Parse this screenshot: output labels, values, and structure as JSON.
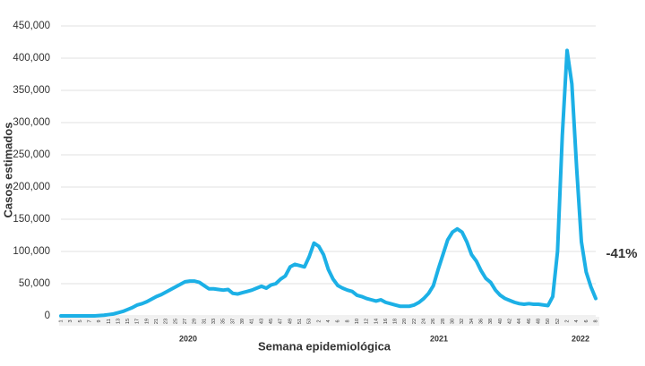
{
  "chart_data": {
    "type": "line",
    "y_label": "Casos estimados",
    "x_label": "Semana epidemiológica",
    "years": [
      "2020",
      "2021",
      "2022"
    ],
    "annotation": "-41%",
    "color": "#1cb0e6",
    "grid": true,
    "ylim": [
      0,
      450000
    ],
    "yticks": [
      0,
      {
        "value": 50000,
        "label": "50,000"
      },
      {
        "value": 100000,
        "label": "100,000"
      },
      {
        "value": 150000,
        "label": "150,000"
      },
      {
        "value": 200000,
        "label": "200,000"
      },
      {
        "value": 250000,
        "label": "250,000"
      },
      {
        "value": 300000,
        "label": "300,000"
      },
      {
        "value": 350000,
        "label": "350,000"
      },
      {
        "value": 400000,
        "label": "400,000"
      },
      {
        "value": 450000,
        "label": "450,000"
      }
    ],
    "categories": [
      "1",
      null,
      "3",
      null,
      "5",
      null,
      "7",
      null,
      "9",
      null,
      "11",
      null,
      "13",
      null,
      "15",
      null,
      "17",
      null,
      "19",
      null,
      "21",
      null,
      "23",
      null,
      "25",
      null,
      "27",
      null,
      "29",
      null,
      "31",
      null,
      "33",
      null,
      "35",
      null,
      "37",
      null,
      "39",
      null,
      "41",
      null,
      "43",
      null,
      "45",
      null,
      "47",
      null,
      "49",
      null,
      "51",
      null,
      "53",
      null,
      "2",
      null,
      "4",
      null,
      "6",
      null,
      "8",
      null,
      "10",
      null,
      "12",
      null,
      "14",
      null,
      "16",
      null,
      "18",
      null,
      "20",
      null,
      "22",
      null,
      "24",
      null,
      "26",
      null,
      "28",
      null,
      "30",
      null,
      "32",
      null,
      "34",
      null,
      "36",
      null,
      "38",
      null,
      "40",
      null,
      "42",
      null,
      "44",
      null,
      "46",
      null,
      "48",
      null,
      "50",
      null,
      "52",
      null,
      "2",
      null,
      "4",
      null,
      "6",
      null,
      "8"
    ],
    "values": [
      0,
      0,
      0,
      0,
      0,
      0,
      0,
      0,
      500,
      1000,
      2000,
      3000,
      5000,
      7000,
      10000,
      13000,
      17000,
      19000,
      22000,
      26000,
      30000,
      33000,
      37000,
      41000,
      45000,
      49000,
      53000,
      54000,
      54000,
      52000,
      47000,
      42000,
      42000,
      41000,
      40000,
      41000,
      35000,
      34000,
      36000,
      38000,
      40000,
      43000,
      46000,
      43000,
      48000,
      50000,
      57000,
      62000,
      76000,
      80000,
      78000,
      76000,
      92000,
      113000,
      108000,
      95000,
      72000,
      57000,
      47000,
      43000,
      40000,
      38000,
      32000,
      30000,
      27000,
      25000,
      23000,
      25000,
      21000,
      19000,
      17000,
      15000,
      15000,
      15000,
      17000,
      21000,
      27000,
      35000,
      47000,
      72000,
      95000,
      118000,
      130000,
      135000,
      130000,
      115000,
      95000,
      85000,
      70000,
      58000,
      52000,
      40000,
      32000,
      27000,
      24000,
      21000,
      19000,
      18000,
      19000,
      18000,
      18000,
      17000,
      16000,
      30000,
      100000,
      280000,
      412000,
      360000,
      230000,
      115000,
      68000,
      45000,
      27000
    ]
  }
}
